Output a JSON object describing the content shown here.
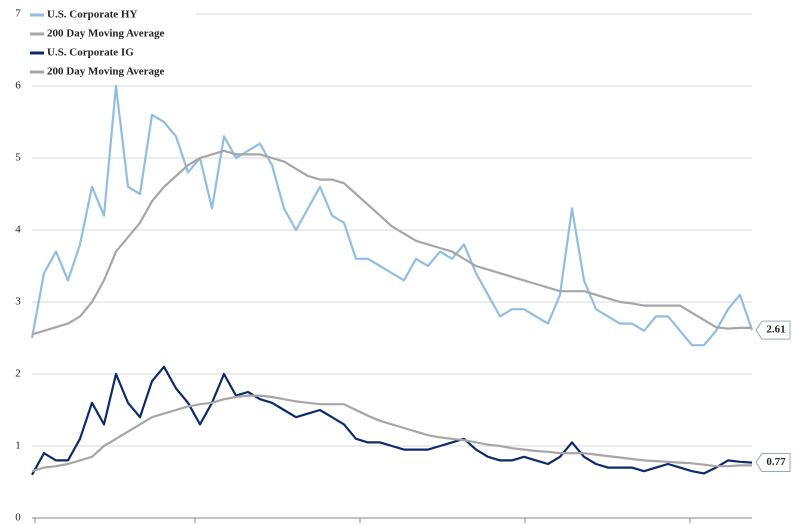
{
  "chart_data": {
    "type": "line",
    "ylim": [
      0,
      7
    ],
    "yticks": [
      0,
      1,
      2,
      3,
      4,
      5,
      6,
      7
    ],
    "grid": true,
    "legend": "top-left",
    "series": [
      {
        "name": "U.S. Corporate HY",
        "color": "#92bde3",
        "label_last": true,
        "values": [
          2.5,
          3.4,
          3.7,
          3.3,
          3.8,
          4.6,
          4.2,
          6.0,
          4.6,
          4.5,
          5.6,
          5.5,
          5.3,
          4.8,
          5.0,
          4.3,
          5.3,
          5.0,
          5.1,
          5.2,
          4.9,
          4.3,
          4.0,
          4.3,
          4.6,
          4.2,
          4.1,
          3.6,
          3.6,
          3.5,
          3.4,
          3.3,
          3.6,
          3.5,
          3.7,
          3.6,
          3.8,
          3.4,
          3.1,
          2.8,
          2.9,
          2.9,
          2.8,
          2.7,
          3.1,
          4.3,
          3.3,
          2.9,
          2.8,
          2.7,
          2.7,
          2.6,
          2.8,
          2.8,
          2.6,
          2.4,
          2.4,
          2.6,
          2.9,
          3.1,
          2.61
        ]
      },
      {
        "name": "200 Day Moving Average",
        "color": "#a6a6a6",
        "label_last": false,
        "values": [
          2.55,
          2.6,
          2.65,
          2.7,
          2.8,
          3.0,
          3.3,
          3.7,
          3.9,
          4.1,
          4.4,
          4.6,
          4.75,
          4.9,
          5.0,
          5.05,
          5.1,
          5.05,
          5.05,
          5.05,
          5.0,
          4.95,
          4.85,
          4.75,
          4.7,
          4.7,
          4.65,
          4.5,
          4.35,
          4.2,
          4.05,
          3.95,
          3.85,
          3.8,
          3.75,
          3.7,
          3.6,
          3.5,
          3.45,
          3.4,
          3.35,
          3.3,
          3.25,
          3.2,
          3.15,
          3.15,
          3.15,
          3.1,
          3.05,
          3.0,
          2.98,
          2.95,
          2.95,
          2.95,
          2.95,
          2.85,
          2.75,
          2.65,
          2.63,
          2.64,
          2.64
        ]
      },
      {
        "name": "U.S. Corporate IG",
        "color": "#0d2a6b",
        "label_last": true,
        "values": [
          0.6,
          0.9,
          0.8,
          0.8,
          1.1,
          1.6,
          1.3,
          2.0,
          1.6,
          1.4,
          1.9,
          2.1,
          1.8,
          1.6,
          1.3,
          1.6,
          2.0,
          1.7,
          1.75,
          1.65,
          1.6,
          1.5,
          1.4,
          1.45,
          1.5,
          1.4,
          1.3,
          1.1,
          1.05,
          1.05,
          1.0,
          0.95,
          0.95,
          0.95,
          1.0,
          1.05,
          1.1,
          0.95,
          0.85,
          0.8,
          0.8,
          0.85,
          0.8,
          0.75,
          0.85,
          1.05,
          0.85,
          0.75,
          0.7,
          0.7,
          0.7,
          0.65,
          0.7,
          0.75,
          0.7,
          0.65,
          0.62,
          0.7,
          0.8,
          0.78,
          0.77
        ]
      },
      {
        "name": "200 Day Moving Average",
        "color": "#a6a6a6",
        "label_last": false,
        "values": [
          0.65,
          0.7,
          0.72,
          0.75,
          0.8,
          0.85,
          1.0,
          1.1,
          1.2,
          1.3,
          1.4,
          1.45,
          1.5,
          1.55,
          1.58,
          1.6,
          1.65,
          1.68,
          1.7,
          1.7,
          1.68,
          1.65,
          1.62,
          1.6,
          1.58,
          1.58,
          1.58,
          1.5,
          1.42,
          1.35,
          1.3,
          1.25,
          1.2,
          1.15,
          1.12,
          1.1,
          1.08,
          1.05,
          1.02,
          1.0,
          0.97,
          0.95,
          0.93,
          0.92,
          0.9,
          0.9,
          0.9,
          0.88,
          0.86,
          0.84,
          0.82,
          0.8,
          0.79,
          0.78,
          0.77,
          0.76,
          0.74,
          0.72,
          0.72,
          0.73,
          0.73
        ]
      }
    ]
  }
}
